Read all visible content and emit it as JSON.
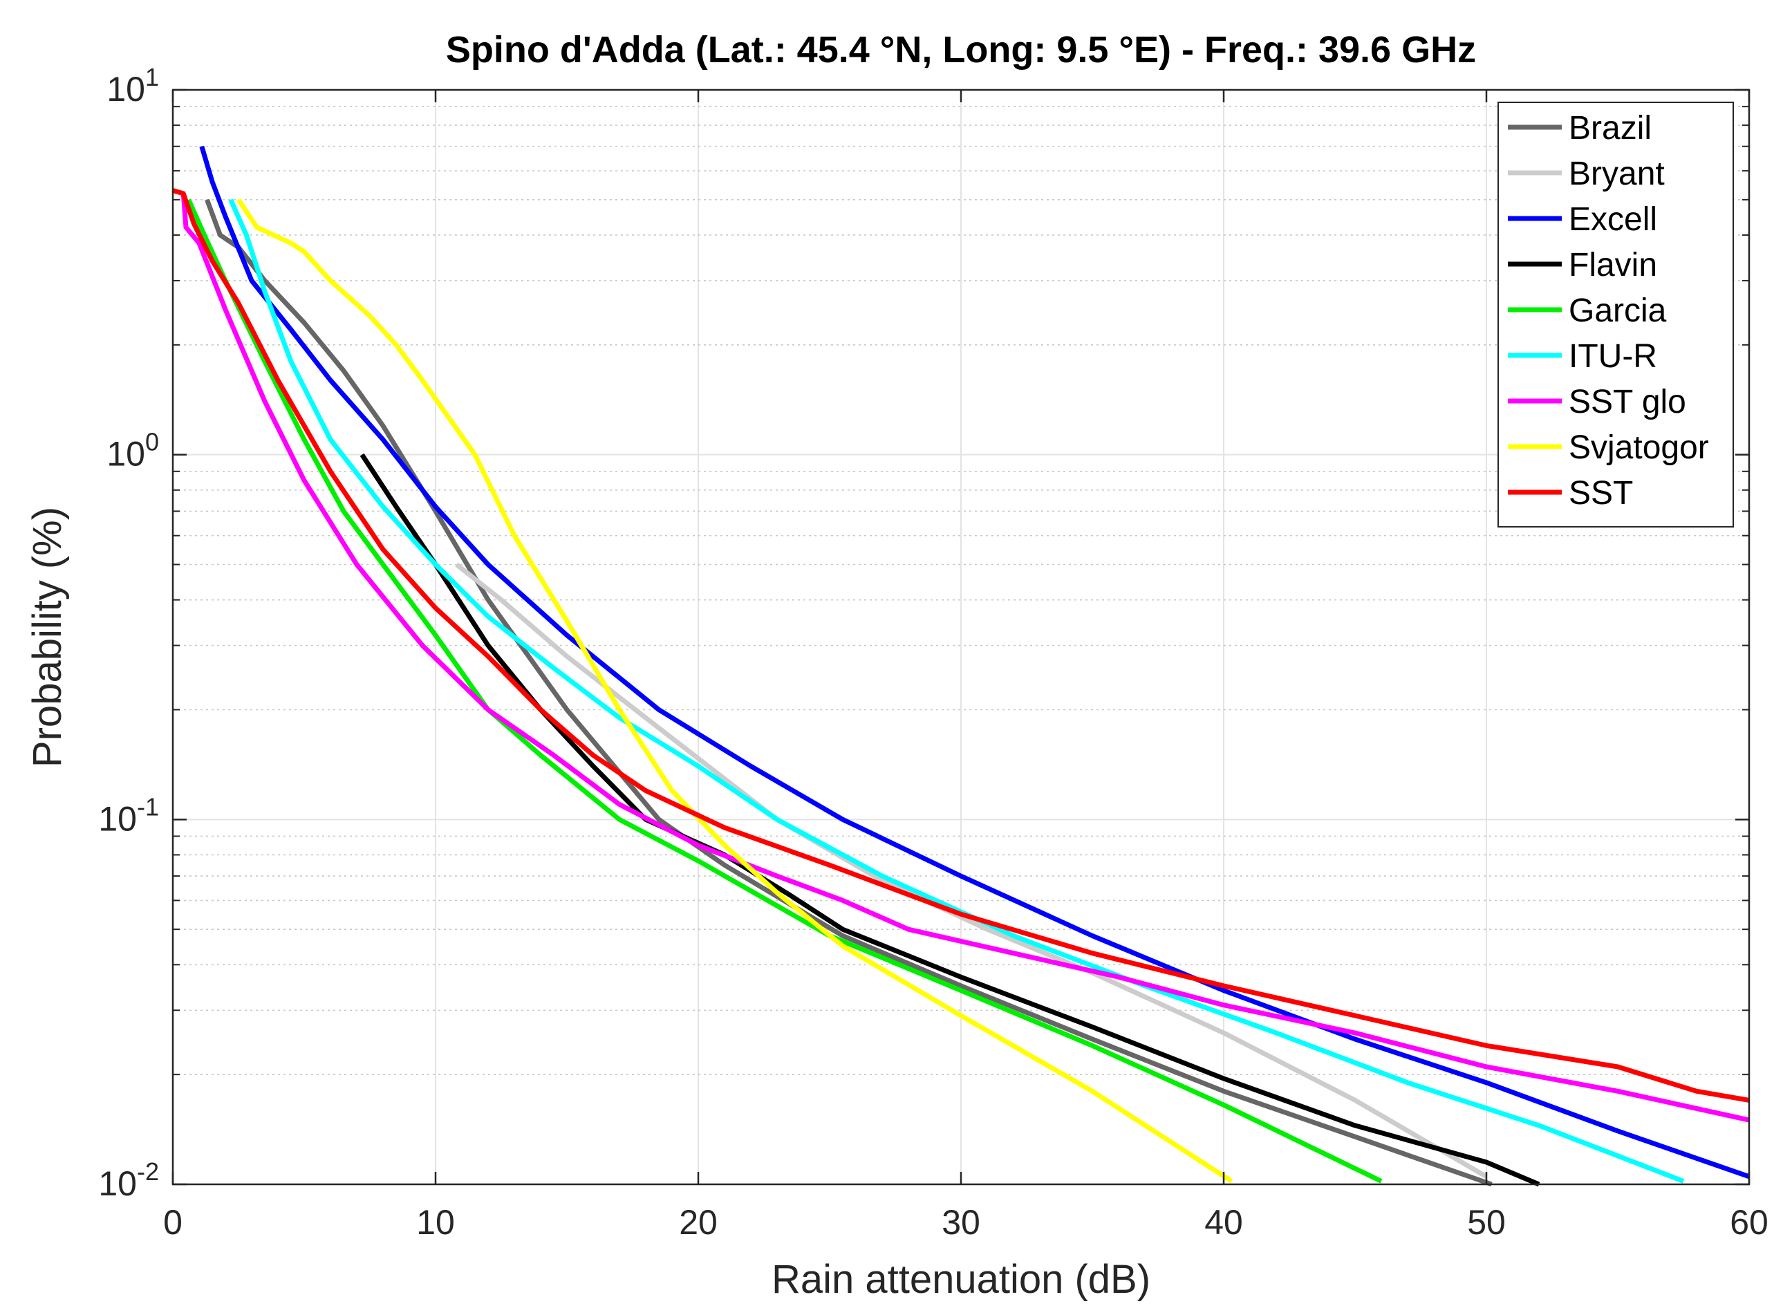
{
  "chart_data": {
    "type": "line",
    "title": "Spino d'Adda (Lat.: 45.4 °N, Long: 9.5 °E) - Freq.: 39.6 GHz",
    "xlabel": "Rain attenuation (dB)",
    "ylabel": "Probability (%)",
    "xlim": [
      0,
      60
    ],
    "ylim": [
      0.01,
      10
    ],
    "xscale": "linear",
    "yscale": "log",
    "grid": true,
    "legend_position": "top-right",
    "x_ticks": [
      {
        "value": 0,
        "label": "0"
      },
      {
        "value": 10,
        "label": "10"
      },
      {
        "value": 20,
        "label": "20"
      },
      {
        "value": 30,
        "label": "30"
      },
      {
        "value": 40,
        "label": "40"
      },
      {
        "value": 50,
        "label": "50"
      },
      {
        "value": 60,
        "label": "60"
      }
    ],
    "y_ticks": [
      {
        "value": 0.01,
        "base": "10",
        "exp": "-2"
      },
      {
        "value": 0.1,
        "base": "10",
        "exp": "-1"
      },
      {
        "value": 1,
        "base": "10",
        "exp": "0"
      },
      {
        "value": 10,
        "base": "10",
        "exp": "1"
      }
    ],
    "series": [
      {
        "name": "Brazil",
        "color": "#666666",
        "points": [
          [
            1.3,
            5.0
          ],
          [
            1.8,
            4.0
          ],
          [
            2.5,
            3.7
          ],
          [
            3.5,
            3.0
          ],
          [
            5.0,
            2.3
          ],
          [
            6.5,
            1.7
          ],
          [
            8.0,
            1.2
          ],
          [
            10.0,
            0.7
          ],
          [
            12.0,
            0.4
          ],
          [
            15.0,
            0.2
          ],
          [
            18.5,
            0.1
          ],
          [
            21.0,
            0.075
          ],
          [
            25.5,
            0.048
          ],
          [
            30.0,
            0.035
          ],
          [
            35.0,
            0.025
          ],
          [
            40.0,
            0.018
          ],
          [
            45.0,
            0.0135
          ],
          [
            50.2,
            0.01
          ]
        ]
      },
      {
        "name": "Bryant",
        "color": "#cccccc",
        "points": [
          [
            10.8,
            0.5
          ],
          [
            12.5,
            0.4
          ],
          [
            15.0,
            0.28
          ],
          [
            18.0,
            0.19
          ],
          [
            23.0,
            0.1
          ],
          [
            27.0,
            0.068
          ],
          [
            31.0,
            0.05
          ],
          [
            35.0,
            0.038
          ],
          [
            40.0,
            0.026
          ],
          [
            45.0,
            0.017
          ],
          [
            50.0,
            0.0105
          ]
        ]
      },
      {
        "name": "Excell",
        "color": "#0000ff",
        "points": [
          [
            1.1,
            7.0
          ],
          [
            1.5,
            5.6
          ],
          [
            2.0,
            4.5
          ],
          [
            3.0,
            3.0
          ],
          [
            4.5,
            2.2
          ],
          [
            6.0,
            1.6
          ],
          [
            8.0,
            1.1
          ],
          [
            10.0,
            0.72
          ],
          [
            12.0,
            0.5
          ],
          [
            15.0,
            0.32
          ],
          [
            18.5,
            0.2
          ],
          [
            22.0,
            0.14
          ],
          [
            25.5,
            0.1
          ],
          [
            30.0,
            0.07
          ],
          [
            35.0,
            0.048
          ],
          [
            40.0,
            0.034
          ],
          [
            45.0,
            0.025
          ],
          [
            50.0,
            0.019
          ],
          [
            55.0,
            0.014
          ],
          [
            60.0,
            0.0105
          ]
        ]
      },
      {
        "name": "Flavin",
        "color": "#000000",
        "points": [
          [
            7.2,
            1.0
          ],
          [
            8.5,
            0.72
          ],
          [
            10.0,
            0.5
          ],
          [
            12.0,
            0.3
          ],
          [
            14.0,
            0.2
          ],
          [
            16.0,
            0.14
          ],
          [
            18.0,
            0.1
          ],
          [
            21.0,
            0.08
          ],
          [
            23.5,
            0.062
          ],
          [
            25.5,
            0.05
          ],
          [
            30.0,
            0.037
          ],
          [
            35.0,
            0.027
          ],
          [
            40.0,
            0.0195
          ],
          [
            45.0,
            0.0145
          ],
          [
            50.0,
            0.0115
          ],
          [
            52.0,
            0.01
          ]
        ]
      },
      {
        "name": "Garcia",
        "color": "#00ee00",
        "points": [
          [
            0.6,
            5.0
          ],
          [
            1.2,
            4.0
          ],
          [
            2.0,
            3.0
          ],
          [
            3.5,
            1.8
          ],
          [
            5.0,
            1.1
          ],
          [
            6.5,
            0.7
          ],
          [
            8.0,
            0.5
          ],
          [
            10.0,
            0.32
          ],
          [
            12.0,
            0.2
          ],
          [
            14.0,
            0.15
          ],
          [
            17.0,
            0.1
          ],
          [
            20.0,
            0.077
          ],
          [
            25.0,
            0.048
          ],
          [
            30.0,
            0.034
          ],
          [
            35.0,
            0.024
          ],
          [
            40.0,
            0.0165
          ],
          [
            46.0,
            0.0102
          ]
        ]
      },
      {
        "name": "ITU-R",
        "color": "#00ffff",
        "points": [
          [
            2.2,
            5.0
          ],
          [
            2.8,
            4.0
          ],
          [
            3.5,
            2.8
          ],
          [
            4.5,
            1.8
          ],
          [
            6.0,
            1.1
          ],
          [
            8.0,
            0.72
          ],
          [
            10.0,
            0.5
          ],
          [
            12.0,
            0.36
          ],
          [
            14.5,
            0.26
          ],
          [
            17.0,
            0.19
          ],
          [
            20.0,
            0.14
          ],
          [
            23.0,
            0.1
          ],
          [
            27.0,
            0.07
          ],
          [
            32.0,
            0.048
          ],
          [
            37.0,
            0.035
          ],
          [
            42.0,
            0.026
          ],
          [
            47.0,
            0.019
          ],
          [
            52.0,
            0.0145
          ],
          [
            57.5,
            0.0102
          ]
        ]
      },
      {
        "name": "SST glo",
        "color": "#ff00ff",
        "points": [
          [
            0.4,
            5.2
          ],
          [
            0.5,
            4.2
          ],
          [
            1.0,
            3.8
          ],
          [
            2.0,
            2.5
          ],
          [
            3.5,
            1.4
          ],
          [
            5.0,
            0.85
          ],
          [
            7.0,
            0.5
          ],
          [
            9.5,
            0.3
          ],
          [
            12.0,
            0.2
          ],
          [
            14.5,
            0.15
          ],
          [
            17.0,
            0.11
          ],
          [
            20.0,
            0.085
          ],
          [
            23.0,
            0.07
          ],
          [
            25.5,
            0.06
          ],
          [
            28.0,
            0.05
          ],
          [
            32.0,
            0.043
          ],
          [
            36.0,
            0.037
          ],
          [
            40.0,
            0.031
          ],
          [
            45.0,
            0.026
          ],
          [
            50.0,
            0.021
          ],
          [
            55.0,
            0.018
          ],
          [
            60.0,
            0.015
          ]
        ]
      },
      {
        "name": "Svjatogor",
        "color": "#ffff00",
        "points": [
          [
            2.5,
            5.0
          ],
          [
            3.2,
            4.2
          ],
          [
            4.5,
            3.8
          ],
          [
            5.0,
            3.6
          ],
          [
            6.0,
            3.0
          ],
          [
            7.5,
            2.4
          ],
          [
            8.5,
            2.0
          ],
          [
            9.5,
            1.6
          ],
          [
            11.5,
            1.0
          ],
          [
            13.0,
            0.6
          ],
          [
            15.0,
            0.35
          ],
          [
            17.0,
            0.2
          ],
          [
            19.0,
            0.12
          ],
          [
            21.0,
            0.085
          ],
          [
            23.0,
            0.063
          ],
          [
            25.5,
            0.045
          ],
          [
            30.0,
            0.029
          ],
          [
            35.0,
            0.018
          ],
          [
            40.3,
            0.0102
          ]
        ]
      },
      {
        "name": "SST",
        "color": "#ff0000",
        "points": [
          [
            0.0,
            5.3
          ],
          [
            0.4,
            5.2
          ],
          [
            0.8,
            4.3
          ],
          [
            1.5,
            3.4
          ],
          [
            2.5,
            2.6
          ],
          [
            4.0,
            1.6
          ],
          [
            6.0,
            0.9
          ],
          [
            8.0,
            0.55
          ],
          [
            10.0,
            0.38
          ],
          [
            12.0,
            0.28
          ],
          [
            14.0,
            0.2
          ],
          [
            16.0,
            0.15
          ],
          [
            18.0,
            0.12
          ],
          [
            21.0,
            0.095
          ],
          [
            25.0,
            0.075
          ],
          [
            30.0,
            0.055
          ],
          [
            35.0,
            0.043
          ],
          [
            40.0,
            0.035
          ],
          [
            45.0,
            0.029
          ],
          [
            50.0,
            0.024
          ],
          [
            55.0,
            0.021
          ],
          [
            58.0,
            0.018
          ],
          [
            60.0,
            0.017
          ]
        ]
      }
    ]
  }
}
